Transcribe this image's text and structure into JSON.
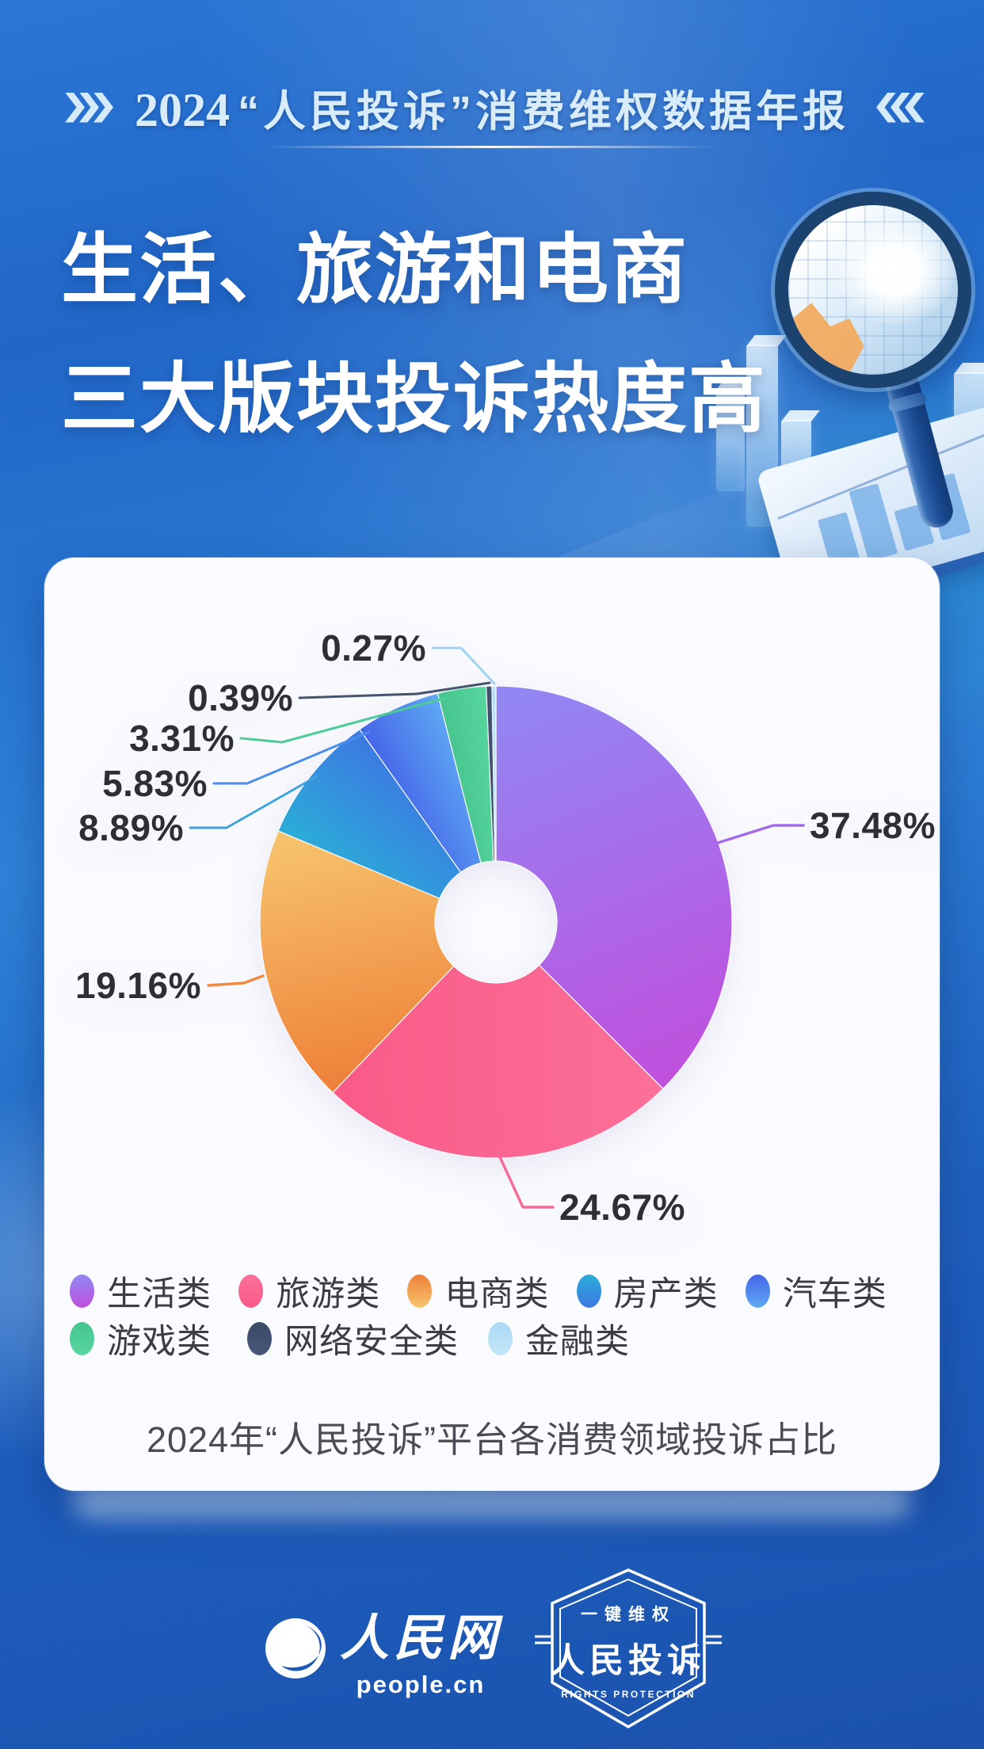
{
  "header": {
    "year": "2024",
    "title": "“人民投诉”消费维权数据年报"
  },
  "hero_title": {
    "line1": "生活、旅游和电商",
    "line2": "三大版块投诉热度高"
  },
  "chart_data": {
    "type": "donut",
    "title": "2024年“人民投诉”平台各消费领域投诉占比",
    "unit": "%",
    "categories": [
      "生活类",
      "旅游类",
      "电商类",
      "房产类",
      "汽车类",
      "游戏类",
      "网络安全类",
      "金融类"
    ],
    "values": [
      37.48,
      24.67,
      19.16,
      8.89,
      5.83,
      3.31,
      0.39,
      0.27
    ],
    "start_angle": 0,
    "clockwise": true,
    "inner_radius_ratio": 0.26,
    "slice_gradients": [
      [
        "#9188F4",
        "#C04FDC"
      ],
      [
        "#FB7099",
        "#F95A88"
      ],
      [
        "#EE8038",
        "#F7C56E"
      ],
      [
        "#2BADD8",
        "#3C78E2"
      ],
      [
        "#4565E8",
        "#5FA9F4"
      ],
      [
        "#45C48D",
        "#58D6A0"
      ],
      [
        "#3A4A66",
        "#46587A"
      ],
      [
        "#A9D9F5",
        "#C4E6F8"
      ]
    ],
    "leader_colors": [
      "#A36BE8",
      "#F76A95",
      "#EF8A45",
      "#3FA3DE",
      "#4A8DEE",
      "#4ECB98",
      "#44546E",
      "#9FD3F0"
    ],
    "label_text_color": "#2E2E36",
    "legend_position": "bottom"
  },
  "footer": {
    "site_name": "人民网",
    "site_domain": "people.cn",
    "badge_top": "一键维权",
    "badge_title": "人民投诉",
    "badge_subtitle": "RIGHTS PROTECTION"
  },
  "colors": {
    "background_top": "#2B76D6",
    "background_bottom": "#1B52AE",
    "card_background": "#FAFBFE",
    "header_text": "#D8ECFA",
    "hero_text": "#FFFFFF",
    "legend_text": "#3C3C45",
    "caption_text": "#4B4B55"
  }
}
